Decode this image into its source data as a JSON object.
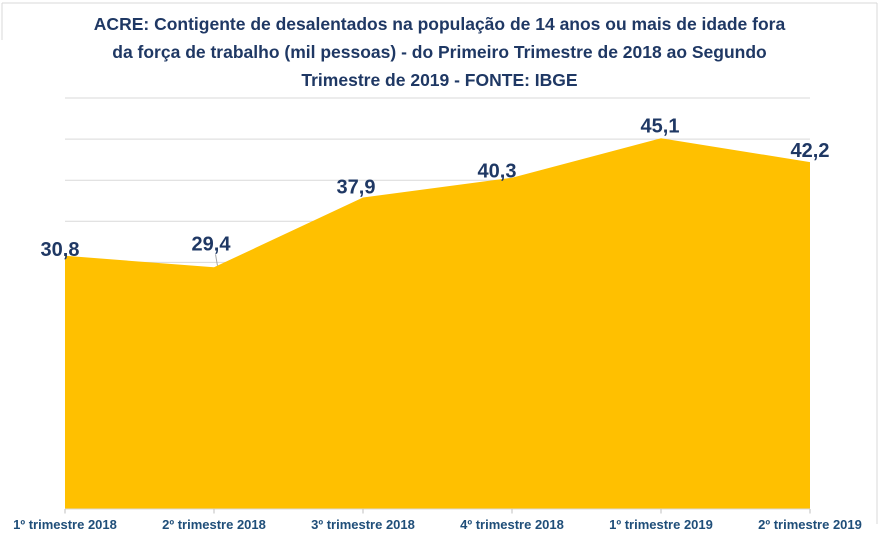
{
  "chart_data": {
    "type": "area",
    "title": "ACRE:  Contigente de  desalentados na população de 14 anos ou mais de idade fora da força de trabalho (mil pessoas) - do Primeiro Trimestre de 2018 ao Segundo Trimestre de 2019 - FONTE: IBGE",
    "title_lines": [
      "ACRE:  Contigente de  desalentados na população de 14 anos ou mais de idade fora",
      "da força de trabalho (mil pessoas) - do Primeiro Trimestre de 2018 ao Segundo",
      "Trimestre de 2019 - FONTE: IBGE"
    ],
    "categories": [
      "1º trimestre 2018",
      "2º trimestre 2018",
      "3º trimestre 2018",
      "4º trimestre 2018",
      "1º trimestre 2019",
      "2º trimestre 2019"
    ],
    "values": [
      30.8,
      29.4,
      37.9,
      40.3,
      45.1,
      42.2
    ],
    "value_labels": [
      "30,8",
      "29,4",
      "37,9",
      "40,3",
      "45,1",
      "42,2"
    ],
    "ylim": [
      0,
      50
    ],
    "gridline_step": 5,
    "grid": true,
    "legend": false,
    "source": "FONTE: IBGE",
    "colors": {
      "area": "#FFC000",
      "grid": "#D9D9D9",
      "axis_line": "#D9D9D9",
      "tick": "#BFBFBF",
      "frame": "#D9D9D9",
      "title": "#1F3864",
      "data_label": "#1F3864",
      "axis_label": "#1F4E79",
      "leader": "#A6A6A6"
    }
  }
}
